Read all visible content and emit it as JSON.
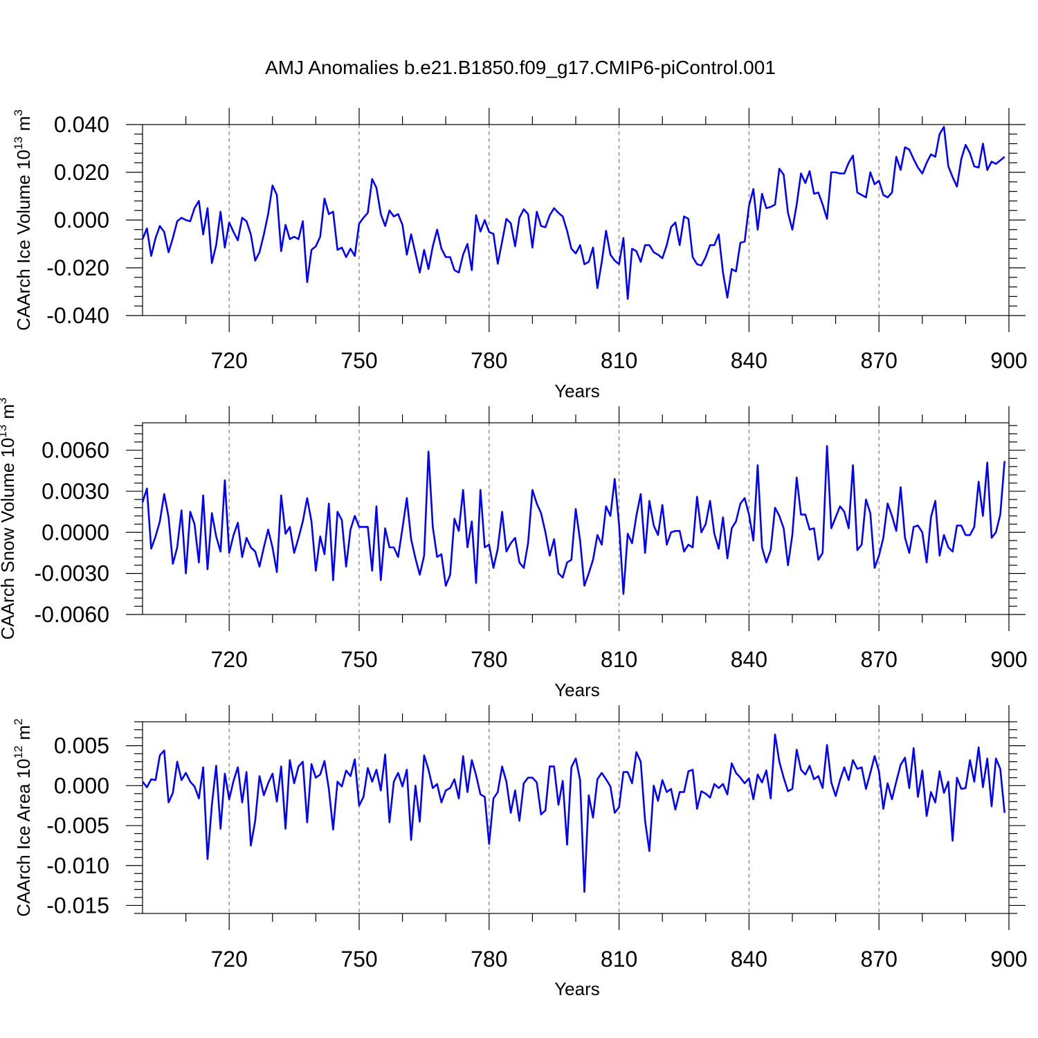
{
  "figure": {
    "title": "AMJ Anomalies b.e21.B1850.f09_g17.CMIP6-piControl.001"
  },
  "chart_data": [
    {
      "type": "line",
      "title": "",
      "xlabel": "Years",
      "ylabel": "CAArch Ice Volume 10",
      "ylabel_exp": "13",
      "ylabel_unit": "m",
      "ylabel_unit_exp": "3",
      "x_start": 700,
      "xlim": [
        700,
        900
      ],
      "ylim": [
        -0.04,
        0.04
      ],
      "xticks": [
        "720",
        "750",
        "780",
        "810",
        "840",
        "870",
        "900"
      ],
      "yticks": [
        "-0.040",
        "-0.020",
        "0.000",
        "0.020",
        "0.040"
      ],
      "grid": "vertical dashed",
      "line_color": "#0000ff",
      "values": [
        -0.008,
        -0.0035,
        -0.015,
        -0.0075,
        -0.0025,
        -0.005,
        -0.0135,
        -0.0075,
        -0.0005,
        0.001,
        0.0,
        -0.0005,
        0.005,
        0.008,
        -0.006,
        0.005,
        -0.018,
        -0.0105,
        0.0035,
        -0.0115,
        -0.001,
        -0.005,
        -0.0085,
        0.001,
        -0.0005,
        -0.006,
        -0.017,
        -0.0135,
        -0.006,
        0.0025,
        0.0145,
        0.0105,
        -0.013,
        -0.002,
        -0.008,
        -0.007,
        -0.008,
        -0.0005,
        -0.026,
        -0.0125,
        -0.011,
        -0.007,
        0.009,
        0.0025,
        0.0035,
        -0.0125,
        -0.0115,
        -0.0155,
        -0.012,
        -0.015,
        -0.0015,
        0.001,
        0.003,
        0.0172,
        0.0135,
        0.0025,
        -0.0025,
        0.004,
        0.0015,
        0.0025,
        -0.002,
        -0.0145,
        -0.006,
        -0.014,
        -0.022,
        -0.0125,
        -0.0205,
        -0.011,
        -0.004,
        -0.012,
        -0.0155,
        -0.0155,
        -0.021,
        -0.022,
        -0.0145,
        -0.01,
        -0.021,
        0.002,
        -0.0048,
        0.0,
        -0.005,
        -0.0058,
        -0.0183,
        -0.009,
        0.0005,
        -0.0013,
        -0.011,
        0.001,
        0.0045,
        0.0025,
        -0.0115,
        0.0035,
        -0.0025,
        -0.003,
        0.002,
        0.005,
        0.003,
        0.0015,
        -0.0045,
        -0.012,
        -0.014,
        -0.0105,
        -0.0185,
        -0.0175,
        -0.0115,
        -0.0285,
        -0.0175,
        -0.0045,
        -0.0145,
        -0.017,
        -0.0185,
        -0.0075,
        -0.033,
        -0.012,
        -0.013,
        -0.0175,
        -0.0105,
        -0.0105,
        -0.0135,
        -0.0145,
        -0.016,
        -0.0105,
        -0.003,
        -0.001,
        -0.0105,
        0.0015,
        0.0005,
        -0.0155,
        -0.0185,
        -0.019,
        -0.0155,
        -0.0105,
        -0.0105,
        -0.006,
        -0.022,
        -0.0325,
        -0.0205,
        -0.0215,
        -0.0095,
        -0.009,
        0.006,
        0.013,
        -0.004,
        0.011,
        0.005,
        0.0055,
        0.0065,
        0.0215,
        0.019,
        0.003,
        -0.004,
        0.0065,
        0.0195,
        0.0155,
        0.0205,
        0.011,
        0.0115,
        0.0065,
        0.0005,
        0.02,
        0.02,
        0.0195,
        0.0195,
        0.024,
        0.027,
        0.0115,
        0.0105,
        0.0095,
        0.02,
        0.015,
        0.0165,
        0.0105,
        0.0095,
        0.0115,
        0.0265,
        0.021,
        0.0305,
        0.0295,
        0.0255,
        0.022,
        0.0195,
        0.024,
        0.0275,
        0.0265,
        0.036,
        0.039,
        0.0225,
        0.018,
        0.014,
        0.0255,
        0.0315,
        0.028,
        0.0225,
        0.022,
        0.032,
        0.021,
        0.0245,
        0.0235,
        0.025,
        0.0265
      ]
    },
    {
      "type": "line",
      "title": "",
      "xlabel": "Years",
      "ylabel": "CAArch Snow Volume 10",
      "ylabel_exp": "13",
      "ylabel_unit": "m",
      "ylabel_unit_exp": "3",
      "x_start": 700,
      "xlim": [
        700,
        900
      ],
      "ylim": [
        -0.006,
        0.008
      ],
      "xticks": [
        "720",
        "750",
        "780",
        "810",
        "840",
        "870",
        "900"
      ],
      "yticks": [
        "-0.0060",
        "-0.0030",
        "0.0000",
        "0.0030",
        "0.0060"
      ],
      "ytick_values": [
        -0.006,
        -0.003,
        0.0,
        0.003,
        0.006
      ],
      "grid": "vertical dashed",
      "line_color": "#0000ff",
      "values": [
        0.0022,
        0.0032,
        -0.0012,
        -0.0003,
        0.0008,
        0.0028,
        0.0011,
        -0.0023,
        -0.0011,
        0.0016,
        -0.003,
        0.0015,
        0.0006,
        -0.0022,
        0.0027,
        -0.0027,
        0.0014,
        -0.0003,
        -0.0014,
        0.0038,
        -0.0015,
        -0.0002,
        0.0007,
        -0.0018,
        -0.0004,
        -0.0011,
        -0.0014,
        -0.0025,
        -0.0011,
        0.0002,
        -0.0011,
        -0.0029,
        0.0027,
        -0.0001,
        0.0004,
        -0.0015,
        -0.0004,
        0.0008,
        0.0025,
        0.0008,
        -0.0028,
        -0.0003,
        -0.0016,
        0.0021,
        -0.0035,
        0.0015,
        0.0009,
        -0.0025,
        0.0002,
        0.0012,
        0.0004,
        0.0004,
        0.0004,
        -0.0028,
        0.0019,
        -0.0035,
        0.0003,
        -0.0011,
        -0.0011,
        -0.0018,
        0.0003,
        0.0025,
        -0.0005,
        -0.0019,
        -0.0031,
        -0.0017,
        0.0059,
        0.0004,
        -0.0018,
        -0.0016,
        -0.0039,
        -0.0031,
        0.001,
        0.0001,
        0.0031,
        -0.0011,
        0.0008,
        -0.0037,
        0.0031,
        -0.0011,
        -0.0009,
        -0.0026,
        -0.0012,
        0.0015,
        -0.0014,
        -0.0008,
        -0.0004,
        -0.0022,
        -0.0026,
        -0.0008,
        0.0031,
        0.0021,
        0.0014,
        0.0,
        -0.0017,
        -0.0005,
        -0.003,
        -0.0033,
        -0.0022,
        -0.002,
        0.0017,
        -0.0006,
        -0.0039,
        -0.003,
        -0.002,
        -0.0002,
        -0.0009,
        0.0019,
        0.0012,
        0.0039,
        0.0006,
        -0.0045,
        -0.0001,
        -0.0008,
        0.0012,
        0.0028,
        -0.0015,
        0.0023,
        0.0005,
        -0.0002,
        0.002,
        -0.0009,
        0.0,
        0.0001,
        0.0001,
        -0.0014,
        -0.0009,
        -0.0011,
        0.0026,
        0.0,
        0.0006,
        0.0023,
        -0.0001,
        -0.0012,
        0.0011,
        -0.0019,
        0.0003,
        0.0008,
        0.0021,
        0.0025,
        0.0013,
        -0.0006,
        0.0049,
        -0.0011,
        -0.0022,
        -0.0013,
        0.0018,
        0.0012,
        0.0003,
        -0.0024,
        -0.0002,
        0.004,
        0.0013,
        0.0013,
        0.0002,
        0.0003,
        -0.002,
        -0.0015,
        0.0063,
        0.0003,
        0.0011,
        0.0019,
        0.0015,
        0.0003,
        0.0049,
        -0.0013,
        -0.0009,
        0.0024,
        0.0014,
        -0.0026,
        -0.0017,
        -0.0004,
        0.0021,
        0.0012,
        0.0001,
        0.0033,
        -0.0004,
        -0.0015,
        0.0004,
        0.0005,
        0.0,
        -0.0022,
        0.0011,
        0.0023,
        -0.0017,
        -0.0002,
        -0.0011,
        -0.0014,
        0.0005,
        0.0005,
        -0.0002,
        -0.0002,
        0.0004,
        0.0037,
        0.0012,
        0.0051,
        -0.0004,
        0.0,
        0.0013,
        0.0052
      ]
    },
    {
      "type": "line",
      "title": "",
      "xlabel": "Years",
      "ylabel": "CAArch Ice Area 10",
      "ylabel_exp": "12",
      "ylabel_unit": "m",
      "ylabel_unit_exp": "2",
      "x_start": 700,
      "xlim": [
        700,
        900
      ],
      "ylim": [
        -0.016,
        0.008
      ],
      "xticks": [
        "720",
        "750",
        "780",
        "810",
        "840",
        "870",
        "900"
      ],
      "yticks": [
        "-0.015",
        "-0.010",
        "-0.005",
        "0.000",
        "0.005"
      ],
      "ytick_values": [
        -0.015,
        -0.01,
        -0.005,
        0.0,
        0.005
      ],
      "grid": "vertical dashed",
      "line_color": "#0000ff",
      "values": [
        0.0005,
        -0.0002,
        0.0008,
        0.0007,
        0.0038,
        0.0044,
        -0.0021,
        -0.0009,
        0.003,
        0.0007,
        0.0016,
        0.0005,
        -0.0001,
        -0.0016,
        0.0023,
        -0.0092,
        -0.0024,
        0.0025,
        -0.0054,
        0.0015,
        -0.0017,
        0.0006,
        0.0023,
        -0.0021,
        0.0017,
        -0.0075,
        -0.0044,
        0.0012,
        -0.0012,
        0.0003,
        0.0015,
        -0.002,
        0.0024,
        -0.0054,
        0.0032,
        0.0003,
        0.0024,
        0.003,
        -0.0046,
        0.0027,
        0.001,
        0.0014,
        0.0031,
        -0.0004,
        -0.0055,
        0.0005,
        -0.0001,
        0.0019,
        0.0012,
        0.0033,
        -0.0025,
        -0.0014,
        0.0022,
        0.0005,
        0.002,
        -0.0006,
        0.0039,
        -0.0046,
        0.0005,
        0.0016,
        -0.0001,
        0.002,
        -0.0068,
        0.0,
        -0.0045,
        0.0038,
        0.002,
        -0.0003,
        0.0002,
        -0.0021,
        -0.0006,
        -0.0003,
        0.0008,
        -0.0016,
        0.0037,
        -0.0008,
        0.0032,
        0.0013,
        -0.0011,
        -0.0014,
        -0.0073,
        -0.0016,
        -0.0008,
        0.0024,
        0.0005,
        -0.0034,
        -0.0006,
        -0.0044,
        0.0003,
        0.001,
        0.001,
        0.0004,
        -0.0036,
        -0.0031,
        0.0024,
        0.0024,
        -0.0024,
        0.0006,
        -0.0074,
        0.0023,
        0.0034,
        0.0007,
        -0.0133,
        -0.0012,
        -0.004,
        0.0008,
        0.0016,
        0.0008,
        -0.0001,
        -0.0034,
        -0.0027,
        0.0017,
        0.0017,
        0.0003,
        0.0042,
        0.003,
        -0.0044,
        -0.0082,
        0.0,
        -0.0019,
        0.0007,
        -0.0008,
        -0.0004,
        -0.003,
        -0.0008,
        -0.0008,
        0.0018,
        0.002,
        -0.0029,
        -0.0007,
        -0.001,
        -0.0015,
        0.0002,
        -0.0003,
        0.0002,
        -0.0011,
        0.0028,
        0.0016,
        0.001,
        0.0003,
        0.0009,
        -0.0017,
        0.0014,
        0.0004,
        0.0019,
        -0.0016,
        0.0064,
        0.003,
        0.001,
        -0.0007,
        -0.0004,
        0.0045,
        0.002,
        0.0014,
        0.0025,
        0.0008,
        0.0012,
        -0.0003,
        0.0051,
        0.0004,
        -0.0013,
        0.0007,
        0.0023,
        0.0007,
        0.0032,
        0.0021,
        0.0023,
        -0.0004,
        0.0016,
        0.0037,
        0.0018,
        -0.0029,
        0.0003,
        -0.0017,
        0.0005,
        0.0026,
        0.0035,
        -0.0003,
        0.0047,
        -0.0014,
        0.0019,
        -0.0038,
        -0.0008,
        -0.0021,
        0.0018,
        -0.0009,
        0.0005,
        -0.0069,
        0.001,
        -0.0004,
        -0.0003,
        0.0032,
        0.0005,
        0.0048,
        -0.0002,
        0.0034,
        -0.0026,
        0.0034,
        0.0021,
        -0.0034
      ]
    }
  ]
}
